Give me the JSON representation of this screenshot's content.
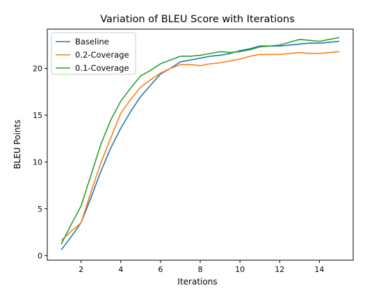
{
  "chart_data": {
    "type": "line",
    "title": "Variation of BLEU Score with Iterations",
    "xlabel": "Iterations",
    "ylabel": "BLEU Points",
    "xlim": [
      0.3,
      15.7
    ],
    "ylim": [
      -0.5,
      24.2
    ],
    "xticks": [
      2,
      4,
      6,
      8,
      10,
      12,
      14
    ],
    "yticks": [
      0,
      5,
      10,
      15,
      20
    ],
    "grid": false,
    "legend_position": "top-left",
    "series": [
      {
        "name": "Baseline",
        "color": "#1f77b4",
        "x": [
          1,
          1.5,
          2,
          2.5,
          3,
          3.5,
          4,
          4.5,
          5,
          5.5,
          6,
          6.5,
          7,
          7.5,
          8,
          8.5,
          9,
          9.5,
          10,
          10.5,
          11,
          11.5,
          12,
          12.5,
          13,
          13.5,
          14,
          14.5,
          15
        ],
        "y": [
          0.6,
          2.0,
          3.5,
          6.2,
          9.0,
          11.5,
          13.6,
          15.4,
          17.0,
          18.2,
          19.4,
          20.0,
          20.7,
          20.9,
          21.1,
          21.3,
          21.4,
          21.6,
          21.9,
          22.1,
          22.4,
          22.4,
          22.4,
          22.5,
          22.6,
          22.7,
          22.7,
          22.8,
          22.9
        ]
      },
      {
        "name": "0.2-Coverage",
        "color": "#ff7f0e",
        "x": [
          1,
          1.5,
          2,
          2.5,
          3,
          3.5,
          4,
          4.5,
          5,
          5.5,
          6,
          6.5,
          7,
          7.5,
          8,
          8.5,
          9,
          9.5,
          10,
          10.5,
          11,
          11.5,
          12,
          12.5,
          13,
          13.5,
          14,
          14.5,
          15
        ],
        "y": [
          1.6,
          2.6,
          3.5,
          6.8,
          9.9,
          12.6,
          15.2,
          16.7,
          18.0,
          18.8,
          19.5,
          20.0,
          20.4,
          20.4,
          20.3,
          20.5,
          20.6,
          20.8,
          21.0,
          21.3,
          21.5,
          21.5,
          21.5,
          21.6,
          21.7,
          21.6,
          21.6,
          21.7,
          21.8
        ]
      },
      {
        "name": "0.1-Coverage",
        "color": "#2ca02c",
        "x": [
          1,
          1.5,
          2,
          2.5,
          3,
          3.5,
          4,
          4.5,
          5,
          5.5,
          6,
          6.5,
          7,
          7.5,
          8,
          8.5,
          9,
          9.5,
          10,
          10.5,
          11,
          11.5,
          12,
          12.5,
          13,
          13.5,
          14,
          14.5,
          15
        ],
        "y": [
          1.2,
          3.3,
          5.3,
          8.6,
          11.9,
          14.5,
          16.5,
          17.9,
          19.2,
          19.8,
          20.5,
          20.9,
          21.3,
          21.3,
          21.4,
          21.6,
          21.8,
          21.7,
          21.8,
          22.0,
          22.3,
          22.4,
          22.5,
          22.8,
          23.1,
          23.0,
          22.9,
          23.1,
          23.3
        ]
      }
    ]
  }
}
